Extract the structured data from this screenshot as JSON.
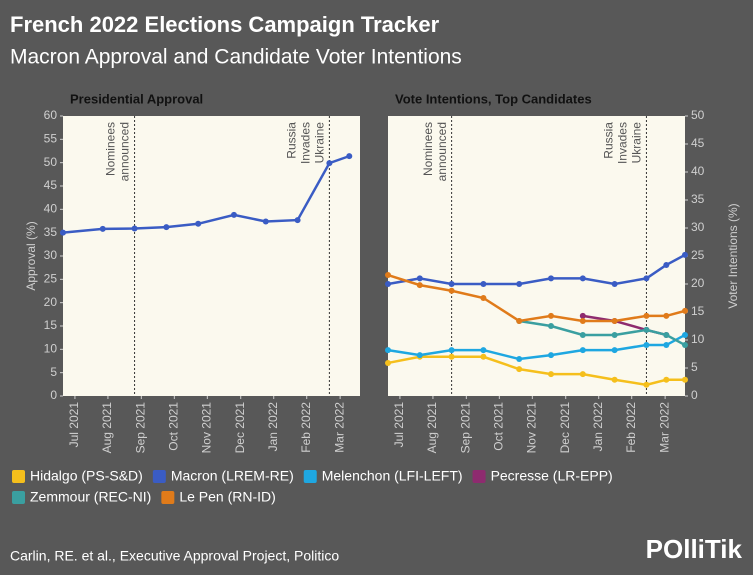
{
  "title": "French 2022 Elections Campaign Tracker",
  "subtitle": "Macron Approval and Candidate Voter Intentions",
  "source": "Carlin, RE. et al., Executive Approval Project, Politico",
  "logo": "POlliTik",
  "chart_data": [
    {
      "type": "line",
      "title": "Presidential Approval",
      "y_label": "Approval (%)",
      "xlim": [
        2021.47,
        2022.217
      ],
      "ylim": [
        0,
        60
      ],
      "yticks": [
        0,
        5,
        10,
        15,
        20,
        25,
        30,
        35,
        40,
        45,
        50,
        55,
        60
      ],
      "xticks": [
        {
          "value": 2021.5,
          "label": "Jul 2021"
        },
        {
          "value": 2021.583,
          "label": "Aug 2021"
        },
        {
          "value": 2021.667,
          "label": "Sep 2021"
        },
        {
          "value": 2021.75,
          "label": "Oct 2021"
        },
        {
          "value": 2021.833,
          "label": "Nov 2021"
        },
        {
          "value": 2021.917,
          "label": "Dec 2021"
        },
        {
          "value": 2022.0,
          "label": "Jan 2022"
        },
        {
          "value": 2022.083,
          "label": "Feb 2022"
        },
        {
          "value": 2022.167,
          "label": "Mar 2022"
        }
      ],
      "axis_side": "left",
      "annotations": [
        {
          "x": 2021.65,
          "lines": [
            "Nominees",
            "announced"
          ]
        },
        {
          "x": 2022.14,
          "lines": [
            "Russia",
            "Invades",
            "Ukraine"
          ]
        }
      ],
      "series": [
        {
          "name": "Macron (LREM-RE)",
          "color": "#3a5cc4",
          "x": [
            2021.47,
            2021.57,
            2021.65,
            2021.73,
            2021.81,
            2021.9,
            2021.98,
            2022.06,
            2022.14,
            2022.19
          ],
          "values": [
            35,
            35.8,
            35.9,
            36.2,
            36.9,
            38.8,
            37.4,
            37.7,
            49.9,
            51.4
          ]
        }
      ]
    },
    {
      "type": "line",
      "title": "Vote Intentions, Top Candidates",
      "y_label": "Voter Intentions (%)",
      "xlim": [
        2021.47,
        2022.217
      ],
      "ylim": [
        0,
        50
      ],
      "yticks": [
        0,
        5,
        10,
        15,
        20,
        25,
        30,
        35,
        40,
        45,
        50
      ],
      "xticks": [
        {
          "value": 2021.5,
          "label": "Jul 2021"
        },
        {
          "value": 2021.583,
          "label": "Aug 2021"
        },
        {
          "value": 2021.667,
          "label": "Sep 2021"
        },
        {
          "value": 2021.75,
          "label": "Oct 2021"
        },
        {
          "value": 2021.833,
          "label": "Nov 2021"
        },
        {
          "value": 2021.917,
          "label": "Dec 2021"
        },
        {
          "value": 2022.0,
          "label": "Jan 2022"
        },
        {
          "value": 2022.083,
          "label": "Feb 2022"
        },
        {
          "value": 2022.167,
          "label": "Mar 2022"
        }
      ],
      "axis_side": "right",
      "legend": "bottom",
      "annotations": [
        {
          "x": 2021.63,
          "lines": [
            "Nominees",
            "announced"
          ]
        },
        {
          "x": 2022.12,
          "lines": [
            "Russia",
            "Invades",
            "Ukraine"
          ]
        }
      ],
      "series": [
        {
          "name": "Hidalgo (PS-S&D)",
          "color": "#f5bf1c",
          "x": [
            2021.47,
            2021.55,
            2021.63,
            2021.71,
            2021.8,
            2021.88,
            2021.96,
            2022.04,
            2022.12,
            2022.17,
            2022.217
          ],
          "values": [
            5.9,
            7.0,
            7.0,
            7.0,
            4.8,
            3.9,
            3.9,
            2.9,
            2.0,
            2.9,
            2.9
          ]
        },
        {
          "name": "Macron (LREM-RE)",
          "color": "#3a5cc4",
          "x": [
            2021.47,
            2021.55,
            2021.63,
            2021.71,
            2021.8,
            2021.88,
            2021.96,
            2022.04,
            2022.12,
            2022.17,
            2022.217
          ],
          "values": [
            20,
            21,
            20,
            20,
            20,
            21,
            21,
            20,
            21,
            23.4,
            25.2
          ]
        },
        {
          "name": "Melenchon (LFI-LEFT)",
          "color": "#1ea7e1",
          "x": [
            2021.47,
            2021.55,
            2021.63,
            2021.71,
            2021.8,
            2021.88,
            2021.96,
            2022.04,
            2022.12,
            2022.17,
            2022.217
          ],
          "values": [
            8.2,
            7.3,
            8.2,
            8.2,
            6.6,
            7.3,
            8.2,
            8.2,
            9.1,
            9.1,
            10.9
          ]
        },
        {
          "name": "Pecresse (LR-EPP)",
          "color": "#8e2b6f",
          "x": [
            2021.96,
            2022.04,
            2022.12,
            2022.17
          ],
          "values": [
            14.3,
            13.4,
            11.8,
            10.9
          ]
        },
        {
          "name": "Zemmour (REC-NI)",
          "color": "#3a9fa0",
          "x": [
            2021.8,
            2021.88,
            2021.96,
            2022.04,
            2022.12,
            2022.17,
            2022.217
          ],
          "values": [
            13.4,
            12.5,
            10.9,
            10.9,
            11.8,
            10.9,
            9.1
          ]
        },
        {
          "name": "Le Pen (RN-ID)",
          "color": "#e07b1a",
          "x": [
            2021.47,
            2021.55,
            2021.63,
            2021.71,
            2021.8,
            2021.88,
            2021.96,
            2022.04,
            2022.12,
            2022.17,
            2022.217
          ],
          "values": [
            21.6,
            19.8,
            18.8,
            17.5,
            13.4,
            14.3,
            13.4,
            13.4,
            14.3,
            14.3,
            15.2
          ]
        }
      ]
    }
  ]
}
